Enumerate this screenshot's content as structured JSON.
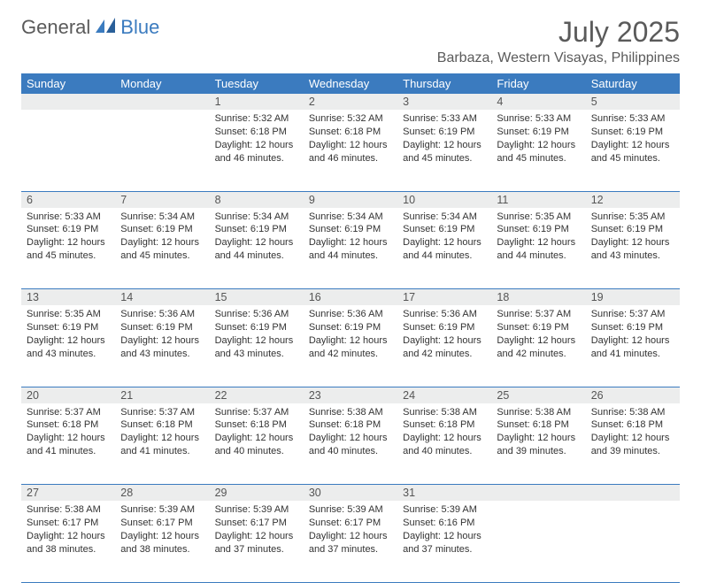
{
  "logo": {
    "text1": "General",
    "text2": "Blue"
  },
  "title": "July 2025",
  "location": "Barbaza, Western Visayas, Philippines",
  "colors": {
    "header_bg": "#3b7bbf",
    "header_text": "#ffffff",
    "daynum_bg": "#eceded",
    "border": "#3b7bbf",
    "text": "#333333",
    "title_text": "#5a5a5a"
  },
  "dayNames": [
    "Sunday",
    "Monday",
    "Tuesday",
    "Wednesday",
    "Thursday",
    "Friday",
    "Saturday"
  ],
  "weeks": [
    [
      null,
      null,
      {
        "n": 1,
        "sr": "5:32 AM",
        "ss": "6:18 PM",
        "dl": "12 hours and 46 minutes."
      },
      {
        "n": 2,
        "sr": "5:32 AM",
        "ss": "6:18 PM",
        "dl": "12 hours and 46 minutes."
      },
      {
        "n": 3,
        "sr": "5:33 AM",
        "ss": "6:19 PM",
        "dl": "12 hours and 45 minutes."
      },
      {
        "n": 4,
        "sr": "5:33 AM",
        "ss": "6:19 PM",
        "dl": "12 hours and 45 minutes."
      },
      {
        "n": 5,
        "sr": "5:33 AM",
        "ss": "6:19 PM",
        "dl": "12 hours and 45 minutes."
      }
    ],
    [
      {
        "n": 6,
        "sr": "5:33 AM",
        "ss": "6:19 PM",
        "dl": "12 hours and 45 minutes."
      },
      {
        "n": 7,
        "sr": "5:34 AM",
        "ss": "6:19 PM",
        "dl": "12 hours and 45 minutes."
      },
      {
        "n": 8,
        "sr": "5:34 AM",
        "ss": "6:19 PM",
        "dl": "12 hours and 44 minutes."
      },
      {
        "n": 9,
        "sr": "5:34 AM",
        "ss": "6:19 PM",
        "dl": "12 hours and 44 minutes."
      },
      {
        "n": 10,
        "sr": "5:34 AM",
        "ss": "6:19 PM",
        "dl": "12 hours and 44 minutes."
      },
      {
        "n": 11,
        "sr": "5:35 AM",
        "ss": "6:19 PM",
        "dl": "12 hours and 44 minutes."
      },
      {
        "n": 12,
        "sr": "5:35 AM",
        "ss": "6:19 PM",
        "dl": "12 hours and 43 minutes."
      }
    ],
    [
      {
        "n": 13,
        "sr": "5:35 AM",
        "ss": "6:19 PM",
        "dl": "12 hours and 43 minutes."
      },
      {
        "n": 14,
        "sr": "5:36 AM",
        "ss": "6:19 PM",
        "dl": "12 hours and 43 minutes."
      },
      {
        "n": 15,
        "sr": "5:36 AM",
        "ss": "6:19 PM",
        "dl": "12 hours and 43 minutes."
      },
      {
        "n": 16,
        "sr": "5:36 AM",
        "ss": "6:19 PM",
        "dl": "12 hours and 42 minutes."
      },
      {
        "n": 17,
        "sr": "5:36 AM",
        "ss": "6:19 PM",
        "dl": "12 hours and 42 minutes."
      },
      {
        "n": 18,
        "sr": "5:37 AM",
        "ss": "6:19 PM",
        "dl": "12 hours and 42 minutes."
      },
      {
        "n": 19,
        "sr": "5:37 AM",
        "ss": "6:19 PM",
        "dl": "12 hours and 41 minutes."
      }
    ],
    [
      {
        "n": 20,
        "sr": "5:37 AM",
        "ss": "6:18 PM",
        "dl": "12 hours and 41 minutes."
      },
      {
        "n": 21,
        "sr": "5:37 AM",
        "ss": "6:18 PM",
        "dl": "12 hours and 41 minutes."
      },
      {
        "n": 22,
        "sr": "5:37 AM",
        "ss": "6:18 PM",
        "dl": "12 hours and 40 minutes."
      },
      {
        "n": 23,
        "sr": "5:38 AM",
        "ss": "6:18 PM",
        "dl": "12 hours and 40 minutes."
      },
      {
        "n": 24,
        "sr": "5:38 AM",
        "ss": "6:18 PM",
        "dl": "12 hours and 40 minutes."
      },
      {
        "n": 25,
        "sr": "5:38 AM",
        "ss": "6:18 PM",
        "dl": "12 hours and 39 minutes."
      },
      {
        "n": 26,
        "sr": "5:38 AM",
        "ss": "6:18 PM",
        "dl": "12 hours and 39 minutes."
      }
    ],
    [
      {
        "n": 27,
        "sr": "5:38 AM",
        "ss": "6:17 PM",
        "dl": "12 hours and 38 minutes."
      },
      {
        "n": 28,
        "sr": "5:39 AM",
        "ss": "6:17 PM",
        "dl": "12 hours and 38 minutes."
      },
      {
        "n": 29,
        "sr": "5:39 AM",
        "ss": "6:17 PM",
        "dl": "12 hours and 37 minutes."
      },
      {
        "n": 30,
        "sr": "5:39 AM",
        "ss": "6:17 PM",
        "dl": "12 hours and 37 minutes."
      },
      {
        "n": 31,
        "sr": "5:39 AM",
        "ss": "6:16 PM",
        "dl": "12 hours and 37 minutes."
      },
      null,
      null
    ]
  ],
  "labels": {
    "sunrise": "Sunrise:",
    "sunset": "Sunset:",
    "daylight": "Daylight:"
  }
}
